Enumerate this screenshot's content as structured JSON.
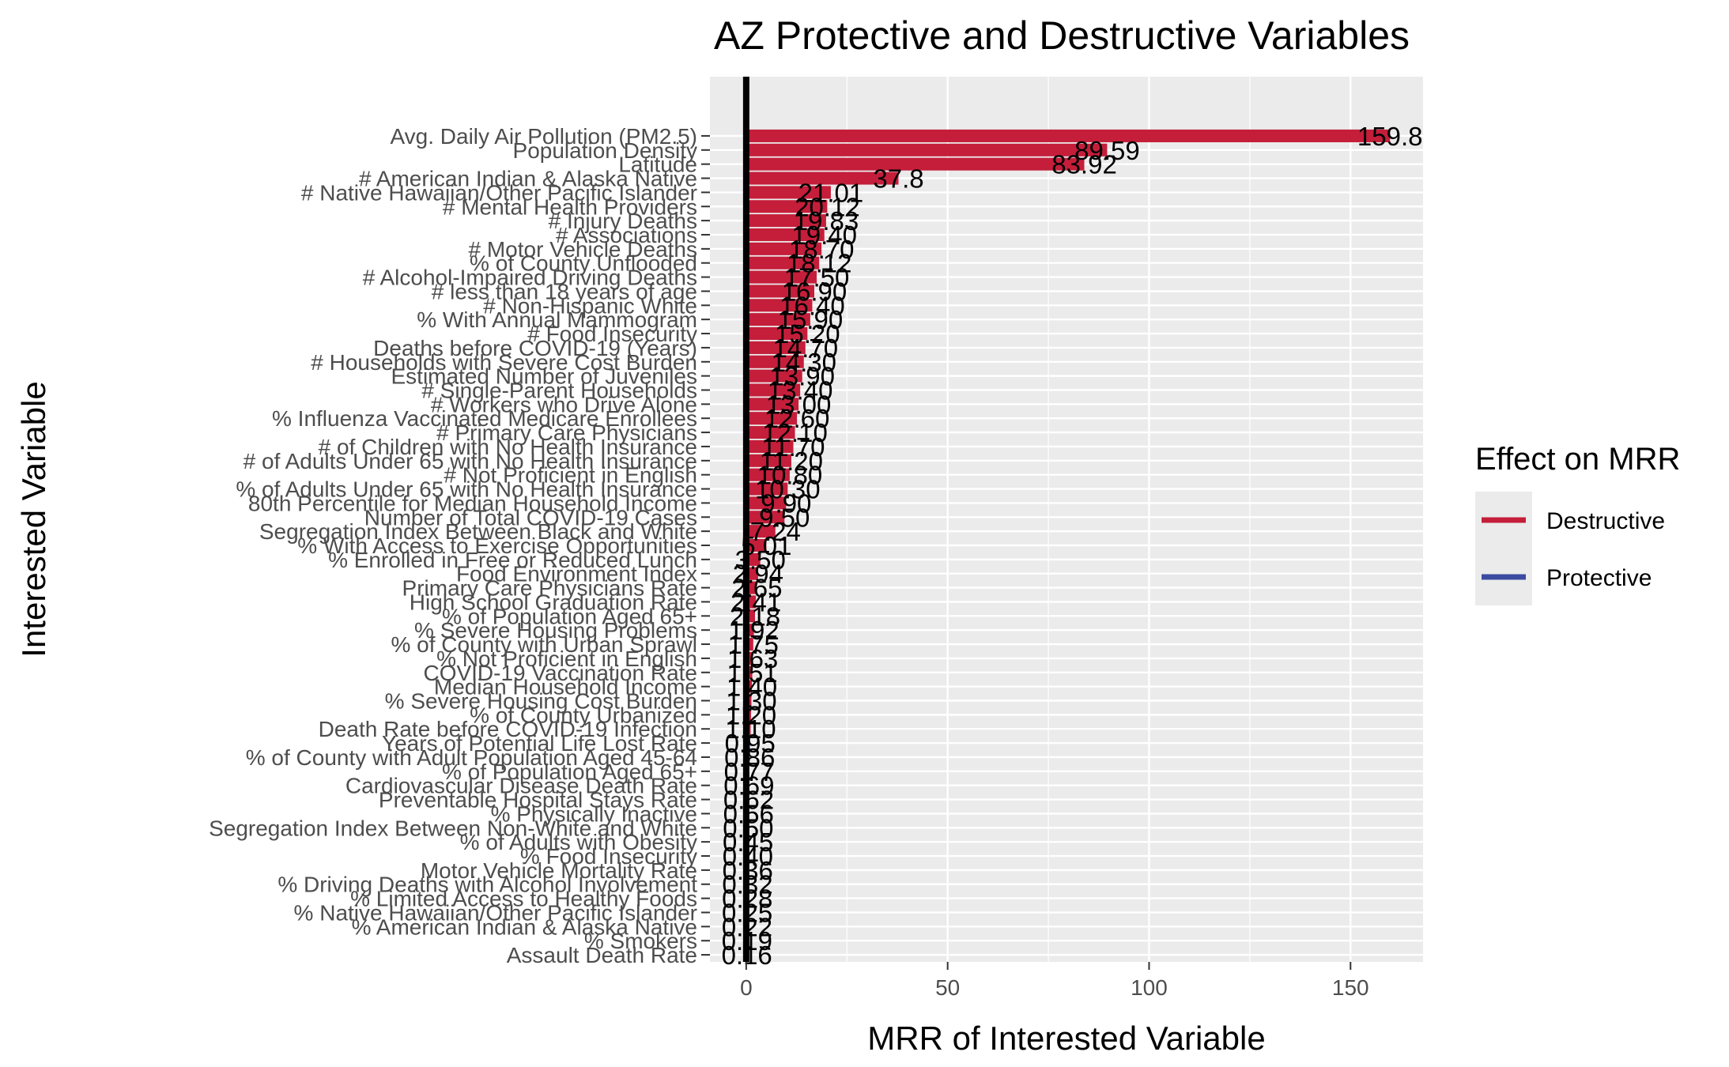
{
  "chart_data": {
    "type": "bar",
    "orientation": "horizontal",
    "title": "AZ Protective and Destructive Variables",
    "xlabel": "MRR of Interested Variable",
    "ylabel": "Interested Variable",
    "xlim": [
      -9,
      168
    ],
    "xticks": [
      0,
      50,
      100,
      150
    ],
    "reference_line": 0,
    "legend": {
      "title": "Effect on MRR",
      "position": "right",
      "entries": [
        {
          "label": "Destructive",
          "color": "#C41E3A"
        },
        {
          "label": "Protective",
          "color": "#3A4CA0"
        }
      ]
    },
    "categories": [
      "Avg. Daily Air Pollution (PM2.5)",
      "Population Density",
      "Latitude",
      "# American Indian & Alaska Native",
      "# Native Hawaiian/Other Pacific Islander",
      "# Mental Health Providers",
      "# Injury Deaths",
      "# Associations",
      "# Motor Vehicle Deaths",
      "% of County Unflooded",
      "# Alcohol-Impaired Driving Deaths",
      "# less than 18 years of age",
      "# Non-Hispanic White",
      "% With Annual Mammogram",
      "# Food Insecurity",
      "Deaths before COVID-19 (Years)",
      "# Households with Severe Cost Burden",
      "Estimated Number of Juveniles",
      "# Single-Parent Households",
      "# Workers who Drive Alone",
      "% Influenza Vaccinated Medicare Enrollees",
      "# Primary Care Physicians",
      "# of Children with No Health Insurance",
      "# of Adults Under 65 with No Health Insurance",
      "# Not Proficient in English",
      "% of Adults Under 65 with No Health Insurance",
      "80th Percentile for Median Household Income",
      "Number of Total COVID-19 Cases",
      "Segregation Index Between Black and White",
      "% With Access to Exercise Opportunities",
      "% Enrolled in Free or Reduced Lunch",
      "Food Environment Index",
      "Primary Care Physicians Rate",
      "High School Graduation Rate",
      "% of Population Aged 65+",
      "% Severe Housing Problems",
      "% of County with Urban Sprawl",
      "% Not Proficient in English",
      "COVID-19 Vaccination Rate",
      "Median Household Income",
      "% Severe Housing Cost Burden",
      "% of County Urbanized",
      "Death Rate before COVID-19 Infection",
      "Years of Potential Life Lost Rate",
      "% of County with Adult Population Aged 45-64",
      "% of Population Aged 65+",
      "Cardiovascular Disease Death Rate",
      "Preventable Hospital Stays Rate",
      "% Physically Inactive",
      "Segregation Index Between Non-White and White",
      "% of Adults with Obesity",
      "% Food Insecurity",
      "Motor Vehicle Mortality Rate",
      "% Driving Deaths with Alcohol Involvement",
      "% Limited Access to Healthy Foods",
      "% Native Hawaiian/Other Pacific Islander",
      "% American Indian & Alaska Native",
      "% Smokers",
      "Assault Death Rate"
    ],
    "values": [
      159.8,
      89.59,
      83.92,
      37.8,
      21.01,
      20.12,
      19.83,
      19.4,
      18.7,
      18.12,
      17.5,
      16.9,
      16.4,
      15.9,
      15.2,
      14.7,
      14.3,
      13.9,
      13.4,
      13.0,
      12.6,
      12.1,
      11.7,
      11.2,
      10.8,
      10.3,
      9.9,
      9.5,
      7.24,
      5.01,
      3.5,
      2.94,
      2.65,
      2.41,
      2.18,
      1.92,
      1.75,
      1.63,
      1.51,
      1.4,
      1.3,
      1.2,
      1.1,
      0.95,
      0.86,
      0.77,
      0.69,
      0.62,
      0.56,
      0.5,
      0.45,
      0.4,
      0.36,
      0.32,
      0.28,
      0.25,
      0.22,
      0.19,
      0.16
    ],
    "labels": [
      "159.8",
      "89.59",
      "83.92",
      "37.8",
      "21.01",
      "20.12",
      "19.83",
      "19.40",
      "18.70",
      "18.12",
      "17.50",
      "16.90",
      "16.40",
      "15.90",
      "15.20",
      "14.70",
      "14.30",
      "13.90",
      "13.40",
      "13.00",
      "12.60",
      "12.10",
      "11.70",
      "11.20",
      "10.80",
      "10.30",
      "9.90",
      "9.50",
      "7.24",
      "5.01",
      "3.50",
      "2.94",
      "2.65",
      "2.41",
      "2.18",
      "1.92",
      "1.75",
      "1.63",
      "1.51",
      "1.40",
      "1.30",
      "1.20",
      "1.10",
      "0.95",
      "0.86",
      "0.77",
      "0.69",
      "0.62",
      "0.56",
      "0.50",
      "0.45",
      "0.40",
      "0.36",
      "0.32",
      "0.28",
      "0.25",
      "0.22",
      "0.19",
      "0.16"
    ],
    "effect": [
      "Destructive",
      "Destructive",
      "Destructive",
      "Destructive",
      "Destructive",
      "Destructive",
      "Destructive",
      "Destructive",
      "Destructive",
      "Destructive",
      "Destructive",
      "Destructive",
      "Destructive",
      "Destructive",
      "Destructive",
      "Destructive",
      "Destructive",
      "Destructive",
      "Destructive",
      "Destructive",
      "Destructive",
      "Destructive",
      "Destructive",
      "Destructive",
      "Destructive",
      "Destructive",
      "Destructive",
      "Destructive",
      "Destructive",
      "Destructive",
      "Destructive",
      "Destructive",
      "Destructive",
      "Destructive",
      "Destructive",
      "Destructive",
      "Destructive",
      "Destructive",
      "Destructive",
      "Destructive",
      "Destructive",
      "Destructive",
      "Destructive",
      "Protective",
      "Protective",
      "Protective",
      "Protective",
      "Protective",
      "Protective",
      "Protective",
      "Protective",
      "Protective",
      "Protective",
      "Protective",
      "Protective",
      "Protective",
      "Protective",
      "Protective",
      "Protective"
    ],
    "panel_color": "#EBEBEB",
    "grid_color": "#FFFFFF",
    "grid": true
  }
}
